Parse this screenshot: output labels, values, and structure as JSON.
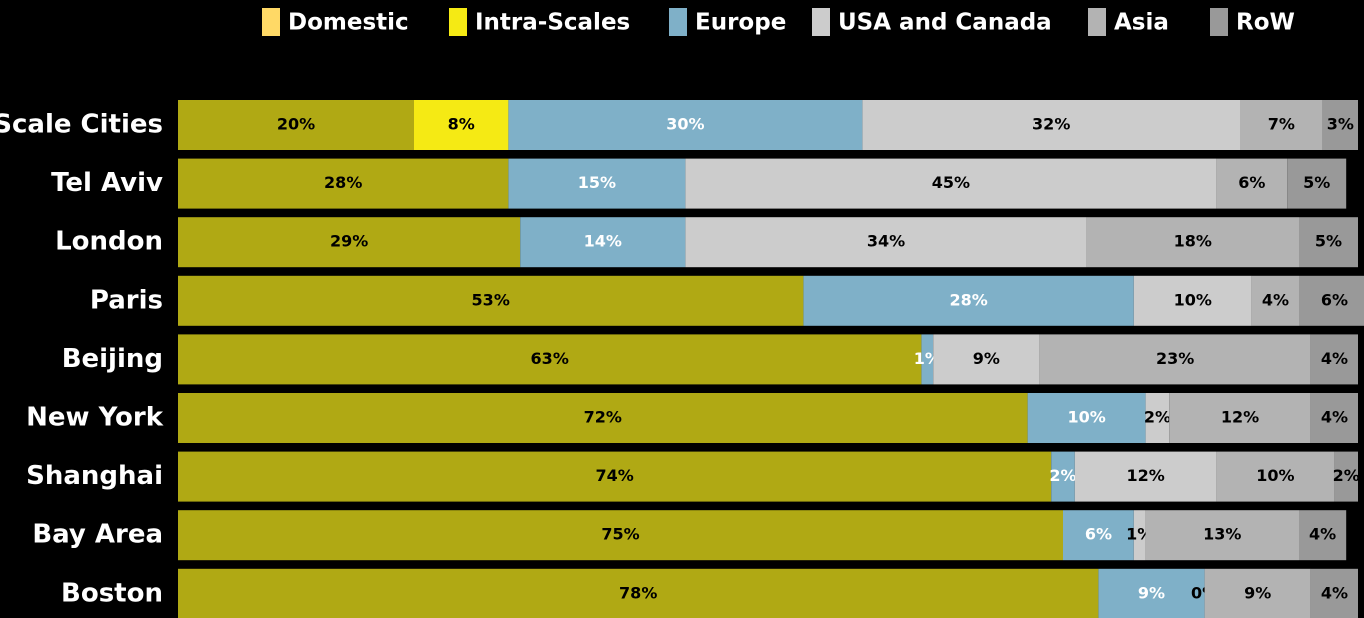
{
  "chart_data": {
    "type": "stacked_barh",
    "categories": [
      "Scale Cities",
      "Tel Aviv",
      "London",
      "Paris",
      "Beijing",
      "New York",
      "Shanghai",
      "Bay Area",
      "Boston"
    ],
    "xlim": [
      0,
      100
    ],
    "series": [
      {
        "name": "Domestic",
        "color": "#b0a914",
        "legend_color": "#ffd966",
        "label_color": "#000000",
        "values": [
          20,
          28,
          29,
          53,
          63,
          72,
          74,
          75,
          78
        ],
        "value_labels": [
          "20%",
          "28%",
          "29%",
          "53%",
          "63%",
          "72%",
          "74%",
          "75%",
          "78%"
        ]
      },
      {
        "name": "Intra-Scales",
        "color": "#f5ea14",
        "legend_color": "#f5ea14",
        "label_color": "#000000",
        "values": [
          8,
          null,
          null,
          null,
          null,
          null,
          null,
          null,
          null
        ],
        "value_labels": [
          "8%",
          null,
          null,
          null,
          null,
          null,
          null,
          null,
          null
        ]
      },
      {
        "name": "Europe",
        "color": "#7fb0c8",
        "legend_color": "#7fb0c8",
        "label_color": "#ffffff",
        "values": [
          30,
          15,
          14,
          28,
          1,
          10,
          2,
          6,
          9
        ],
        "value_labels": [
          "30%",
          "15%",
          "14%",
          "28%",
          "1%",
          "10%",
          "2%",
          "6%",
          "9%"
        ]
      },
      {
        "name": "USA and Canada",
        "color": "#cccccc",
        "legend_color": "#cccccc",
        "label_color": "#000000",
        "values": [
          32,
          45,
          34,
          10,
          9,
          2,
          12,
          1,
          0
        ],
        "value_labels": [
          "32%",
          "45%",
          "34%",
          "10%",
          "9%",
          "2%",
          "12%",
          "1%",
          "0%"
        ]
      },
      {
        "name": "Asia",
        "color": "#b3b3b3",
        "legend_color": "#b3b3b3",
        "label_color": "#000000",
        "values": [
          7,
          6,
          18,
          4,
          23,
          12,
          10,
          13,
          9
        ],
        "value_labels": [
          "7%",
          "6%",
          "18%",
          "4%",
          "23%",
          "12%",
          "10%",
          "13%",
          "9%"
        ]
      },
      {
        "name": "RoW",
        "color": "#999999",
        "legend_color": "#999999",
        "label_color": "#000000",
        "values": [
          3,
          5,
          5,
          6,
          4,
          4,
          2,
          4,
          4
        ],
        "value_labels": [
          "3%",
          "5%",
          "5%",
          "6%",
          "4%",
          "4%",
          "2%",
          "4%",
          "4%"
        ]
      }
    ]
  }
}
